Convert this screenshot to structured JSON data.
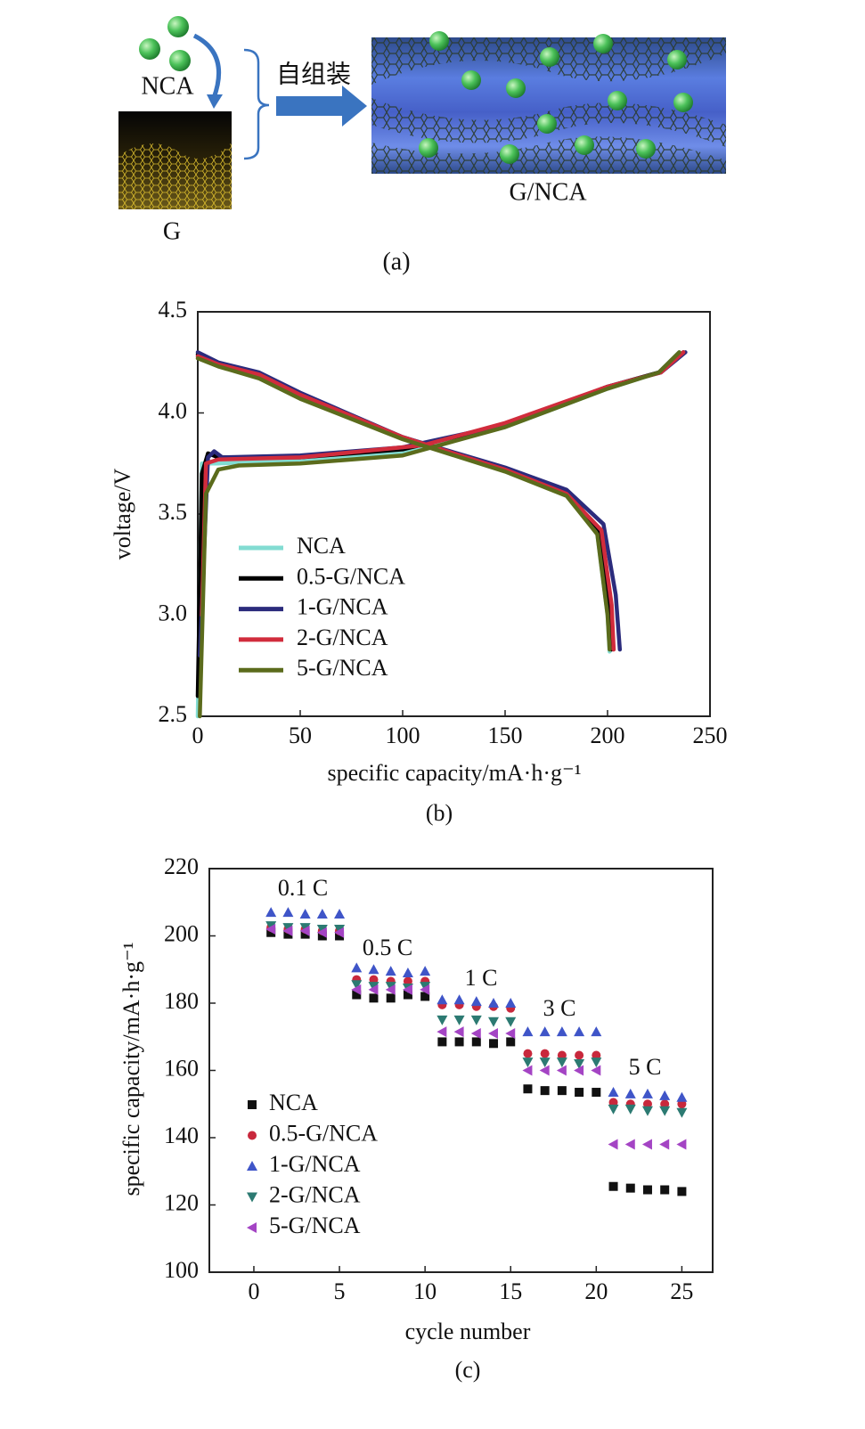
{
  "figure": {
    "panel_a": {
      "nca": "NCA",
      "g": "G",
      "process": "自组装",
      "product": "G/NCA",
      "caption": "(a)"
    }
  },
  "chart_data": [
    {
      "type": "line",
      "caption": "(b)",
      "xlabel": "specific capacity/mA·h·g⁻¹",
      "ylabel": "voltage/V",
      "xlim": [
        0,
        250
      ],
      "ylim": [
        2.5,
        4.5
      ],
      "xticks": [
        0,
        50,
        100,
        150,
        200,
        250
      ],
      "yticks": [
        2.5,
        {
          "value": 3,
          "label": "3.0"
        },
        3.5,
        {
          "value": 4,
          "label": "4.0"
        },
        4.5
      ],
      "legend": "lower left",
      "series": [
        {
          "name": "NCA",
          "color": "#82dcd2",
          "x": [
            0,
            2,
            10,
            50,
            100,
            150,
            200,
            225,
            235,
            null,
            0,
            10,
            30,
            50,
            100,
            150,
            180,
            195,
            200,
            201
          ],
          "values": [
            2.5,
            3.75,
            3.75,
            3.77,
            3.8,
            3.93,
            4.12,
            4.2,
            4.3,
            null,
            4.28,
            4.24,
            4.18,
            4.08,
            3.88,
            3.72,
            3.6,
            3.4,
            3.0,
            2.82
          ]
        },
        {
          "name": "0.5-G/NCA",
          "color": "#000000",
          "x": [
            0,
            2,
            5,
            10,
            50,
            100,
            150,
            200,
            225,
            237,
            null,
            0,
            10,
            30,
            50,
            100,
            150,
            180,
            196,
            201,
            202
          ],
          "values": [
            2.6,
            3.7,
            3.8,
            3.78,
            3.78,
            3.82,
            3.94,
            4.13,
            4.2,
            4.3,
            null,
            4.29,
            4.24,
            4.19,
            4.09,
            3.88,
            3.72,
            3.61,
            3.42,
            3.05,
            2.83
          ]
        },
        {
          "name": "1-G/NCA",
          "color": "#2b2b7c",
          "x": [
            1,
            5,
            8,
            12,
            50,
            100,
            150,
            200,
            226,
            238,
            null,
            0,
            10,
            30,
            50,
            100,
            150,
            180,
            198,
            204,
            206
          ],
          "values": [
            2.8,
            3.78,
            3.81,
            3.78,
            3.79,
            3.83,
            3.94,
            4.13,
            4.2,
            4.3,
            null,
            4.3,
            4.25,
            4.2,
            4.1,
            3.88,
            3.73,
            3.62,
            3.45,
            3.1,
            2.83
          ]
        },
        {
          "name": "2-G/NCA",
          "color": "#d12c3c",
          "x": [
            2,
            4,
            10,
            50,
            110,
            150,
            200,
            226,
            237,
            null,
            0,
            10,
            30,
            50,
            100,
            150,
            180,
            197,
            202,
            203
          ],
          "values": [
            3.0,
            3.75,
            3.77,
            3.78,
            3.84,
            3.95,
            4.13,
            4.2,
            4.3,
            null,
            4.28,
            4.24,
            4.19,
            4.09,
            3.88,
            3.72,
            3.6,
            3.42,
            3.05,
            2.83
          ]
        },
        {
          "name": "5-G/NCA",
          "color": "#5b6b1c",
          "x": [
            1,
            4,
            10,
            20,
            50,
            100,
            150,
            200,
            225,
            235,
            null,
            0,
            10,
            30,
            50,
            100,
            150,
            180,
            195,
            200,
            201
          ],
          "values": [
            2.5,
            3.6,
            3.72,
            3.74,
            3.75,
            3.79,
            3.93,
            4.12,
            4.2,
            4.3,
            null,
            4.27,
            4.23,
            4.17,
            4.07,
            3.87,
            3.71,
            3.59,
            3.4,
            3.0,
            2.83
          ]
        }
      ]
    },
    {
      "type": "scatter",
      "caption": "(c)",
      "xlabel": "cycle number",
      "ylabel": "specific capacity/mA·h·g⁻¹",
      "xlim": [
        -2.6,
        26.8
      ],
      "ylim": [
        100,
        220
      ],
      "xticks": [
        0,
        5,
        10,
        15,
        20,
        25
      ],
      "yticks": [
        100,
        120,
        140,
        160,
        180,
        200,
        220
      ],
      "legend": "lower left",
      "annotations": [
        "0.1 C",
        "0.5 C",
        "1 C",
        "3 C",
        "5 C"
      ],
      "x": [
        1,
        2,
        3,
        4,
        5,
        6,
        7,
        8,
        9,
        10,
        11,
        12,
        13,
        14,
        15,
        16,
        17,
        18,
        19,
        20,
        21,
        22,
        23,
        24,
        25
      ],
      "series": [
        {
          "name": "NCA",
          "color": "#111111",
          "marker": "square",
          "values": [
            201,
            200.5,
            200.5,
            200,
            200,
            182.5,
            181.5,
            181.5,
            182.5,
            182,
            168.5,
            168.5,
            168.5,
            168,
            168.5,
            154.5,
            154,
            154,
            153.5,
            153.5,
            125.5,
            125,
            124.5,
            124.5,
            124
          ]
        },
        {
          "name": "0.5-G/NCA",
          "color": "#c8283c",
          "marker": "circle",
          "values": [
            202.5,
            202,
            202,
            201.5,
            201.5,
            187,
            187,
            186.5,
            186.5,
            186.5,
            179.5,
            179.5,
            179,
            179,
            178.5,
            165,
            165,
            164.5,
            164.5,
            164.5,
            150.5,
            150,
            150,
            150,
            150
          ]
        },
        {
          "name": "1-G/NCA",
          "color": "#3f55c8",
          "marker": "triangle-up",
          "values": [
            207,
            207,
            206.5,
            206.5,
            206.5,
            190.5,
            190,
            189.5,
            189,
            189.5,
            181,
            181,
            180.5,
            180,
            180,
            171.5,
            171.5,
            171.5,
            171.5,
            171.5,
            153.5,
            153,
            153,
            152.5,
            152
          ]
        },
        {
          "name": "2-G/NCA",
          "color": "#2c7a72",
          "marker": "triangle-down",
          "values": [
            203,
            202.5,
            202.5,
            202,
            202,
            185.5,
            185,
            185,
            184.5,
            185,
            175,
            175,
            175,
            174.5,
            174.5,
            162.5,
            162.5,
            162.5,
            162,
            162.5,
            148.5,
            148.5,
            148,
            148,
            147.5
          ]
        },
        {
          "name": "5-G/NCA",
          "color": "#a444c4",
          "marker": "triangle-left",
          "values": [
            202,
            201.5,
            201.5,
            201,
            201,
            184,
            184,
            184,
            184,
            184,
            171.5,
            171.5,
            171,
            171,
            171,
            160,
            160,
            160,
            160,
            160,
            138,
            138,
            138,
            138,
            138
          ]
        }
      ]
    }
  ]
}
